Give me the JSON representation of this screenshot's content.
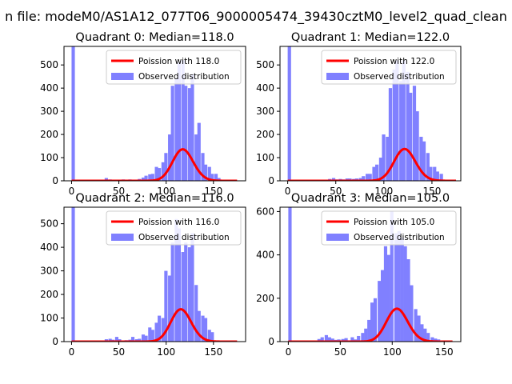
{
  "figure": {
    "suptitle": "n file: modeM0/AS1A12_077T06_9000005474_39430cztM0_level2_quad_clean"
  },
  "colors": {
    "hist": "#8080ff",
    "poisson": "#ff0000",
    "axis": "#000000"
  },
  "chart_data": [
    {
      "type": "bar",
      "title": "Quadrant 0: Median=118.0",
      "xlim": [
        -8,
        184
      ],
      "ylim": [
        0,
        580
      ],
      "xticks": [
        0,
        50,
        100,
        150
      ],
      "yticks": [
        0,
        100,
        200,
        300,
        400,
        500
      ],
      "legend_position": "upper right",
      "legend": [
        "Poission with 118.0",
        "Observed distribution"
      ],
      "bin_width": 3.5,
      "hist": [
        [
          0,
          580
        ],
        [
          35,
          12
        ],
        [
          39,
          6
        ],
        [
          42,
          4
        ],
        [
          46,
          2
        ],
        [
          49,
          3
        ],
        [
          53,
          6
        ],
        [
          56,
          4
        ],
        [
          60,
          6
        ],
        [
          63,
          5
        ],
        [
          67,
          3
        ],
        [
          70,
          8
        ],
        [
          74,
          14
        ],
        [
          77,
          22
        ],
        [
          81,
          28
        ],
        [
          84,
          30
        ],
        [
          88,
          60
        ],
        [
          91,
          55
        ],
        [
          95,
          80
        ],
        [
          98,
          120
        ],
        [
          102,
          200
        ],
        [
          105,
          410
        ],
        [
          109,
          440
        ],
        [
          112,
          510
        ],
        [
          116,
          520
        ],
        [
          119,
          410
        ],
        [
          123,
          400
        ],
        [
          126,
          460
        ],
        [
          130,
          200
        ],
        [
          133,
          250
        ],
        [
          137,
          120
        ],
        [
          140,
          70
        ],
        [
          144,
          60
        ],
        [
          147,
          30
        ],
        [
          151,
          30
        ],
        [
          154,
          12
        ]
      ],
      "poisson": {
        "mean": 118.0,
        "scale": 3700,
        "x_range": [
          0,
          175
        ]
      }
    },
    {
      "type": "bar",
      "title": "Quadrant 1: Median=122.0",
      "xlim": [
        -8,
        180
      ],
      "ylim": [
        0,
        580
      ],
      "xticks": [
        0,
        50,
        100,
        150
      ],
      "yticks": [
        0,
        100,
        200,
        300,
        400,
        500
      ],
      "legend_position": "upper right",
      "legend": [
        "Poission with 122.0",
        "Observed distribution"
      ],
      "bin_width": 3.5,
      "hist": [
        [
          0,
          580
        ],
        [
          42,
          8
        ],
        [
          46,
          12
        ],
        [
          49,
          6
        ],
        [
          53,
          8
        ],
        [
          56,
          6
        ],
        [
          60,
          10
        ],
        [
          63,
          10
        ],
        [
          67,
          8
        ],
        [
          70,
          10
        ],
        [
          74,
          12
        ],
        [
          77,
          20
        ],
        [
          81,
          30
        ],
        [
          84,
          30
        ],
        [
          88,
          60
        ],
        [
          91,
          70
        ],
        [
          95,
          100
        ],
        [
          98,
          200
        ],
        [
          102,
          190
        ],
        [
          105,
          400
        ],
        [
          109,
          480
        ],
        [
          112,
          520
        ],
        [
          116,
          430
        ],
        [
          119,
          520
        ],
        [
          123,
          470
        ],
        [
          126,
          380
        ],
        [
          130,
          410
        ],
        [
          133,
          300
        ],
        [
          137,
          190
        ],
        [
          140,
          170
        ],
        [
          144,
          120
        ],
        [
          147,
          60
        ],
        [
          151,
          60
        ],
        [
          154,
          40
        ],
        [
          158,
          30
        ]
      ],
      "poisson": {
        "mean": 122.0,
        "scale": 3800,
        "x_range": [
          0,
          175
        ]
      }
    },
    {
      "type": "bar",
      "title": "Quadrant 2: Median=116.0",
      "xlim": [
        -8,
        184
      ],
      "ylim": [
        0,
        570
      ],
      "xticks": [
        0,
        50,
        100,
        150
      ],
      "yticks": [
        0,
        100,
        200,
        300,
        400,
        500
      ],
      "legend_position": "upper right",
      "legend": [
        "Poission with 116.0",
        "Observed distribution"
      ],
      "bin_width": 3.5,
      "hist": [
        [
          0,
          570
        ],
        [
          35,
          10
        ],
        [
          39,
          12
        ],
        [
          42,
          8
        ],
        [
          46,
          20
        ],
        [
          49,
          10
        ],
        [
          53,
          4
        ],
        [
          56,
          6
        ],
        [
          60,
          8
        ],
        [
          63,
          20
        ],
        [
          67,
          10
        ],
        [
          70,
          12
        ],
        [
          74,
          30
        ],
        [
          77,
          25
        ],
        [
          81,
          60
        ],
        [
          84,
          50
        ],
        [
          88,
          80
        ],
        [
          91,
          110
        ],
        [
          95,
          100
        ],
        [
          98,
          300
        ],
        [
          102,
          280
        ],
        [
          105,
          420
        ],
        [
          109,
          520
        ],
        [
          112,
          480
        ],
        [
          116,
          380
        ],
        [
          119,
          420
        ],
        [
          123,
          400
        ],
        [
          126,
          460
        ],
        [
          130,
          240
        ],
        [
          133,
          130
        ],
        [
          137,
          110
        ],
        [
          140,
          100
        ],
        [
          144,
          50
        ],
        [
          147,
          40
        ]
      ],
      "poisson": {
        "mean": 116.0,
        "scale": 3700,
        "x_range": [
          0,
          175
        ]
      }
    },
    {
      "type": "bar",
      "title": "Quadrant 3: Median=105.0",
      "xlim": [
        -8,
        166
      ],
      "ylim": [
        0,
        620
      ],
      "xticks": [
        0,
        50,
        100,
        150
      ],
      "yticks": [
        0,
        200,
        400,
        600
      ],
      "legend_position": "upper right",
      "legend": [
        "Poission with 105.0",
        "Observed distribution"
      ],
      "bin_width": 3.2,
      "hist": [
        [
          0,
          620
        ],
        [
          28,
          12
        ],
        [
          31,
          20
        ],
        [
          35,
          30
        ],
        [
          38,
          20
        ],
        [
          41,
          14
        ],
        [
          44,
          8
        ],
        [
          47,
          10
        ],
        [
          51,
          12
        ],
        [
          54,
          16
        ],
        [
          57,
          6
        ],
        [
          60,
          20
        ],
        [
          63,
          10
        ],
        [
          66,
          26
        ],
        [
          70,
          40
        ],
        [
          73,
          60
        ],
        [
          76,
          100
        ],
        [
          79,
          180
        ],
        [
          82,
          200
        ],
        [
          86,
          280
        ],
        [
          89,
          330
        ],
        [
          92,
          440
        ],
        [
          95,
          400
        ],
        [
          98,
          600
        ],
        [
          102,
          500
        ],
        [
          105,
          510
        ],
        [
          108,
          480
        ],
        [
          111,
          440
        ],
        [
          114,
          380
        ],
        [
          117,
          260
        ],
        [
          121,
          150
        ],
        [
          124,
          120
        ],
        [
          127,
          80
        ],
        [
          130,
          60
        ],
        [
          133,
          40
        ],
        [
          137,
          20
        ],
        [
          140,
          14
        ],
        [
          143,
          10
        ]
      ],
      "poisson": {
        "mean": 105.0,
        "scale": 3900,
        "x_range": [
          0,
          158
        ]
      }
    }
  ]
}
